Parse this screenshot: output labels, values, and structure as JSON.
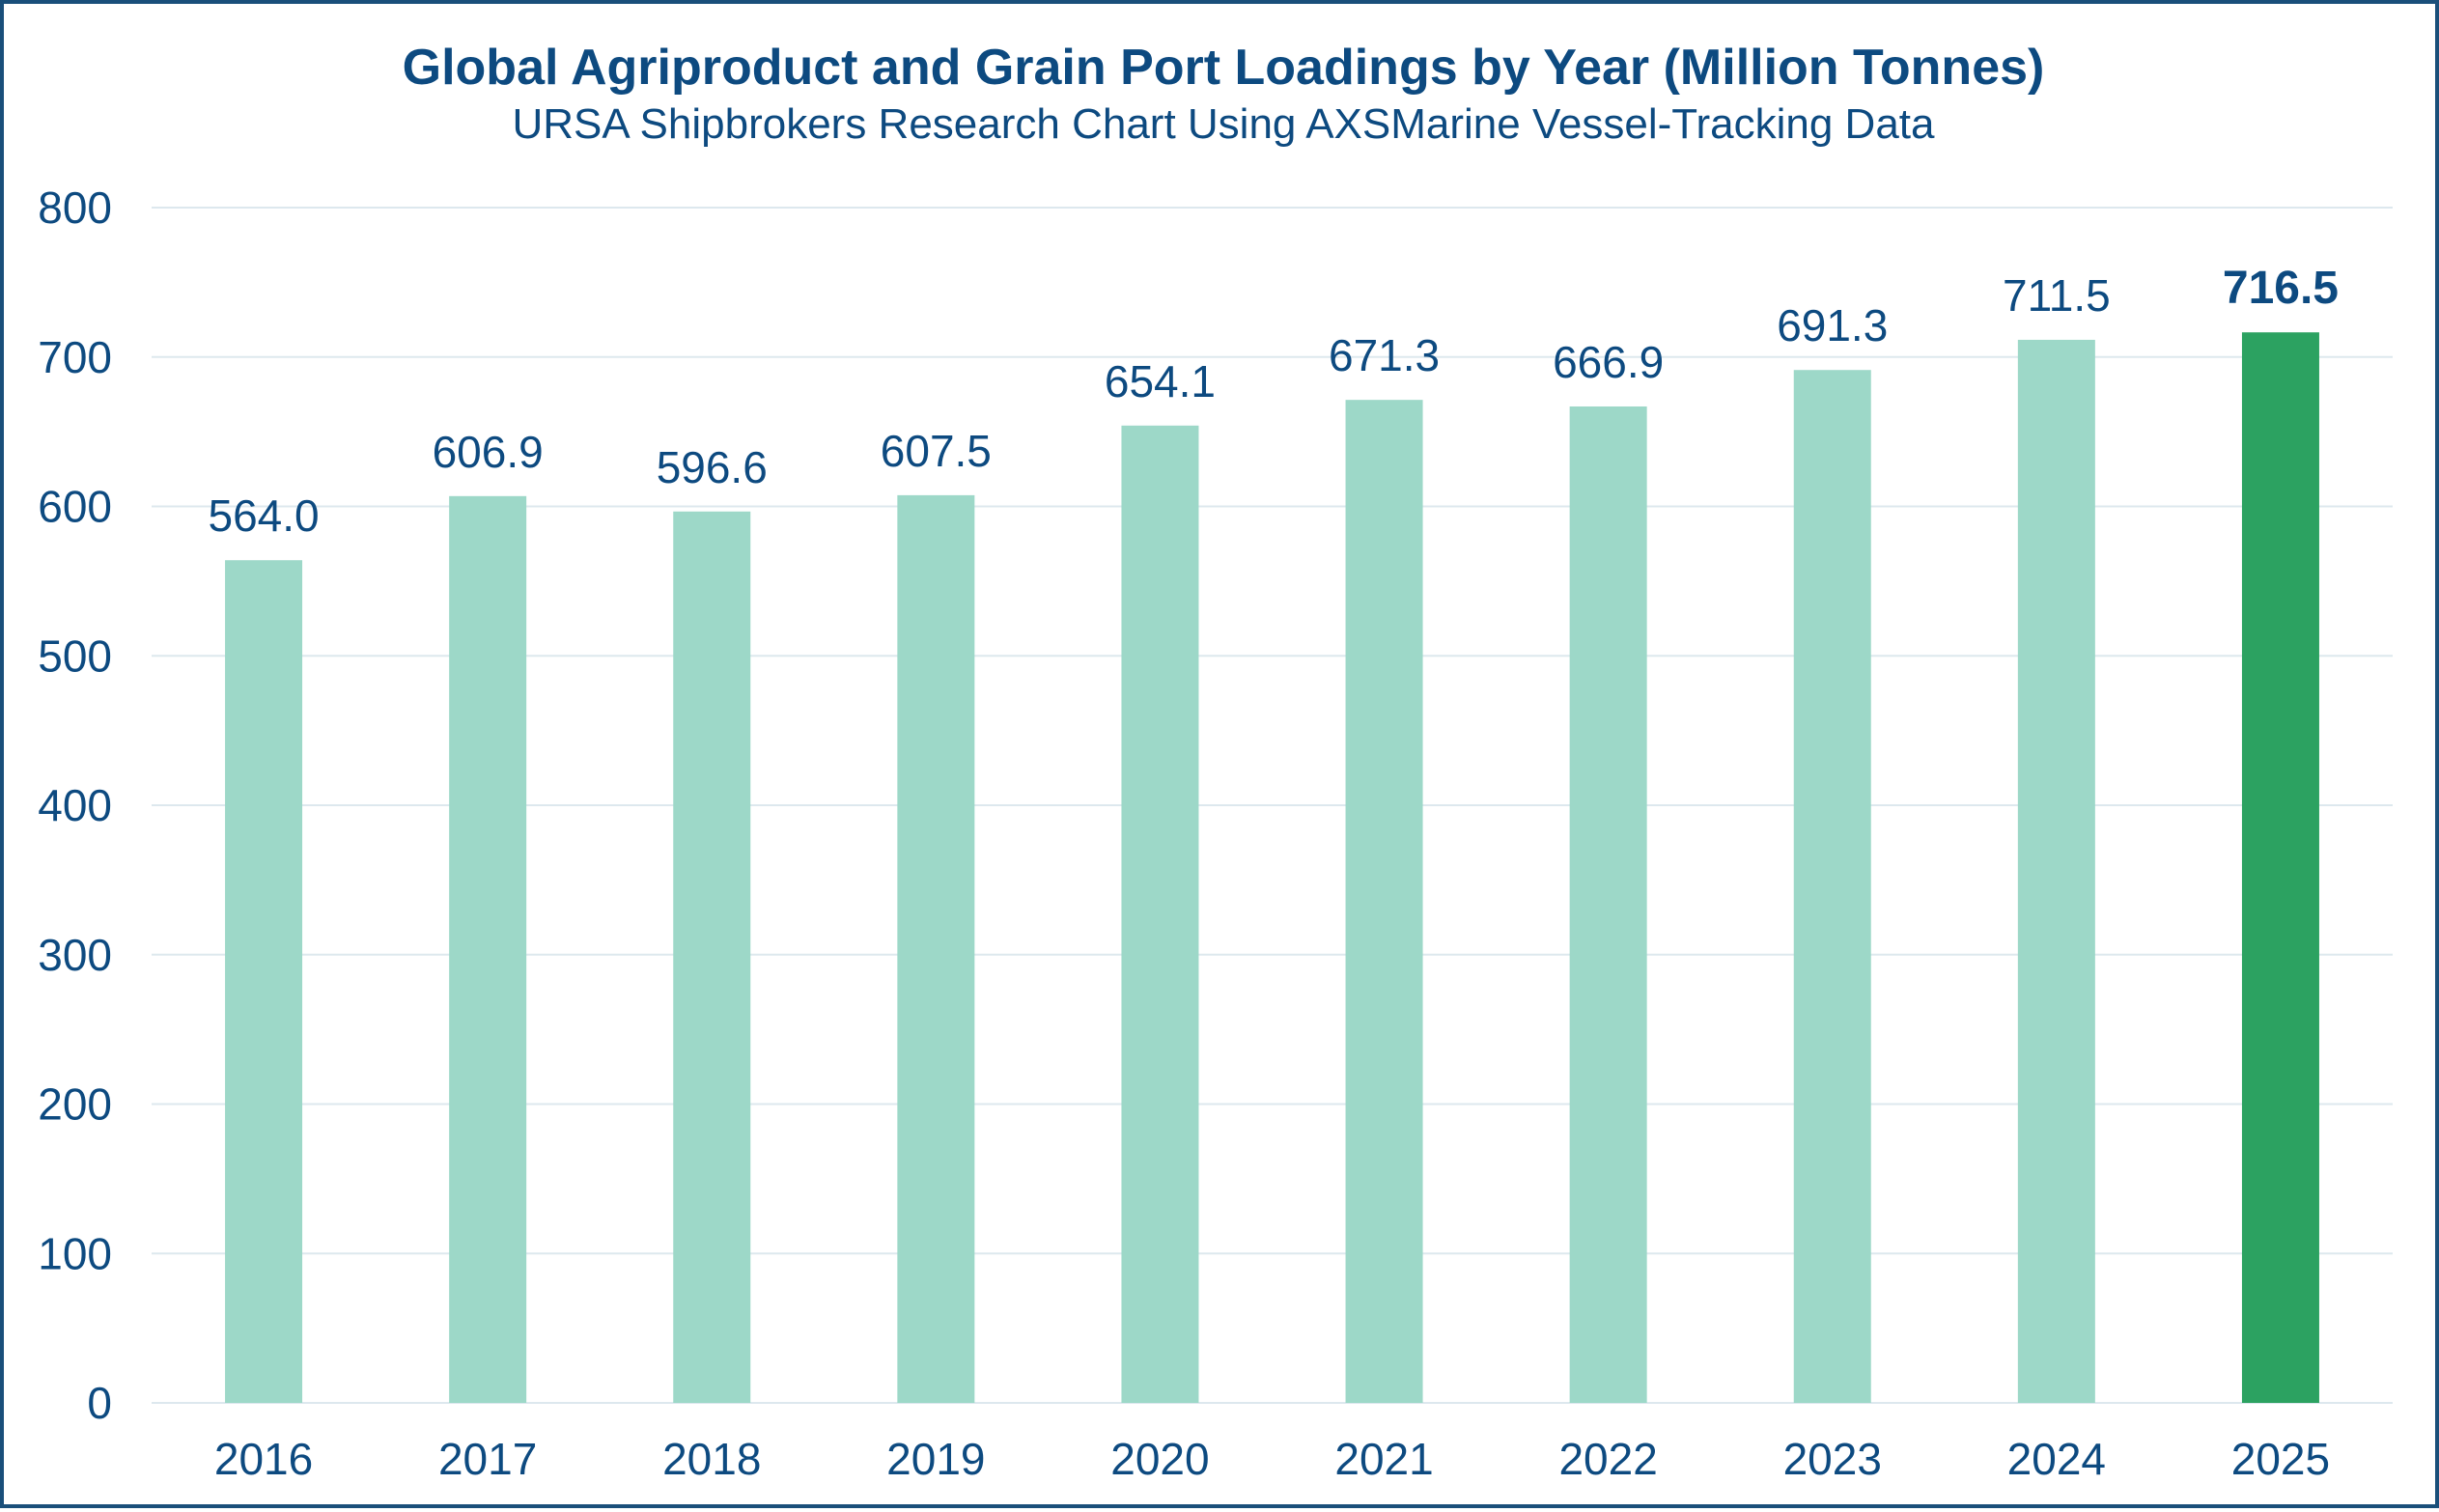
{
  "chart_data": {
    "type": "bar",
    "title": "Global Agriproduct and Grain Port Loadings by Year (Million Tonnes)",
    "subtitle": "URSA Shipbrokers Research Chart Using AXSMarine Vessel-Tracking Data",
    "xlabel": "",
    "ylabel": "",
    "categories": [
      "2016",
      "2017",
      "2018",
      "2019",
      "2020",
      "2021",
      "2022",
      "2023",
      "2024",
      "2025"
    ],
    "values": [
      564.0,
      606.9,
      596.6,
      607.5,
      654.1,
      671.3,
      666.9,
      691.3,
      711.5,
      716.5
    ],
    "value_labels": [
      "564.0",
      "606.9",
      "596.6",
      "607.5",
      "654.1",
      "671.3",
      "666.9",
      "691.3",
      "711.5",
      "716.5"
    ],
    "highlight_index": 9,
    "ylim": [
      0,
      800
    ],
    "yticks": [
      "0",
      "100",
      "200",
      "300",
      "400",
      "500",
      "600",
      "700",
      "800"
    ],
    "grid": true,
    "colors": {
      "bar": "#9dd8c8",
      "highlight_bar": "#2ca261",
      "text": "#0d4a80",
      "grid": "#dde8ee",
      "frame": "#1a4f7a"
    }
  }
}
